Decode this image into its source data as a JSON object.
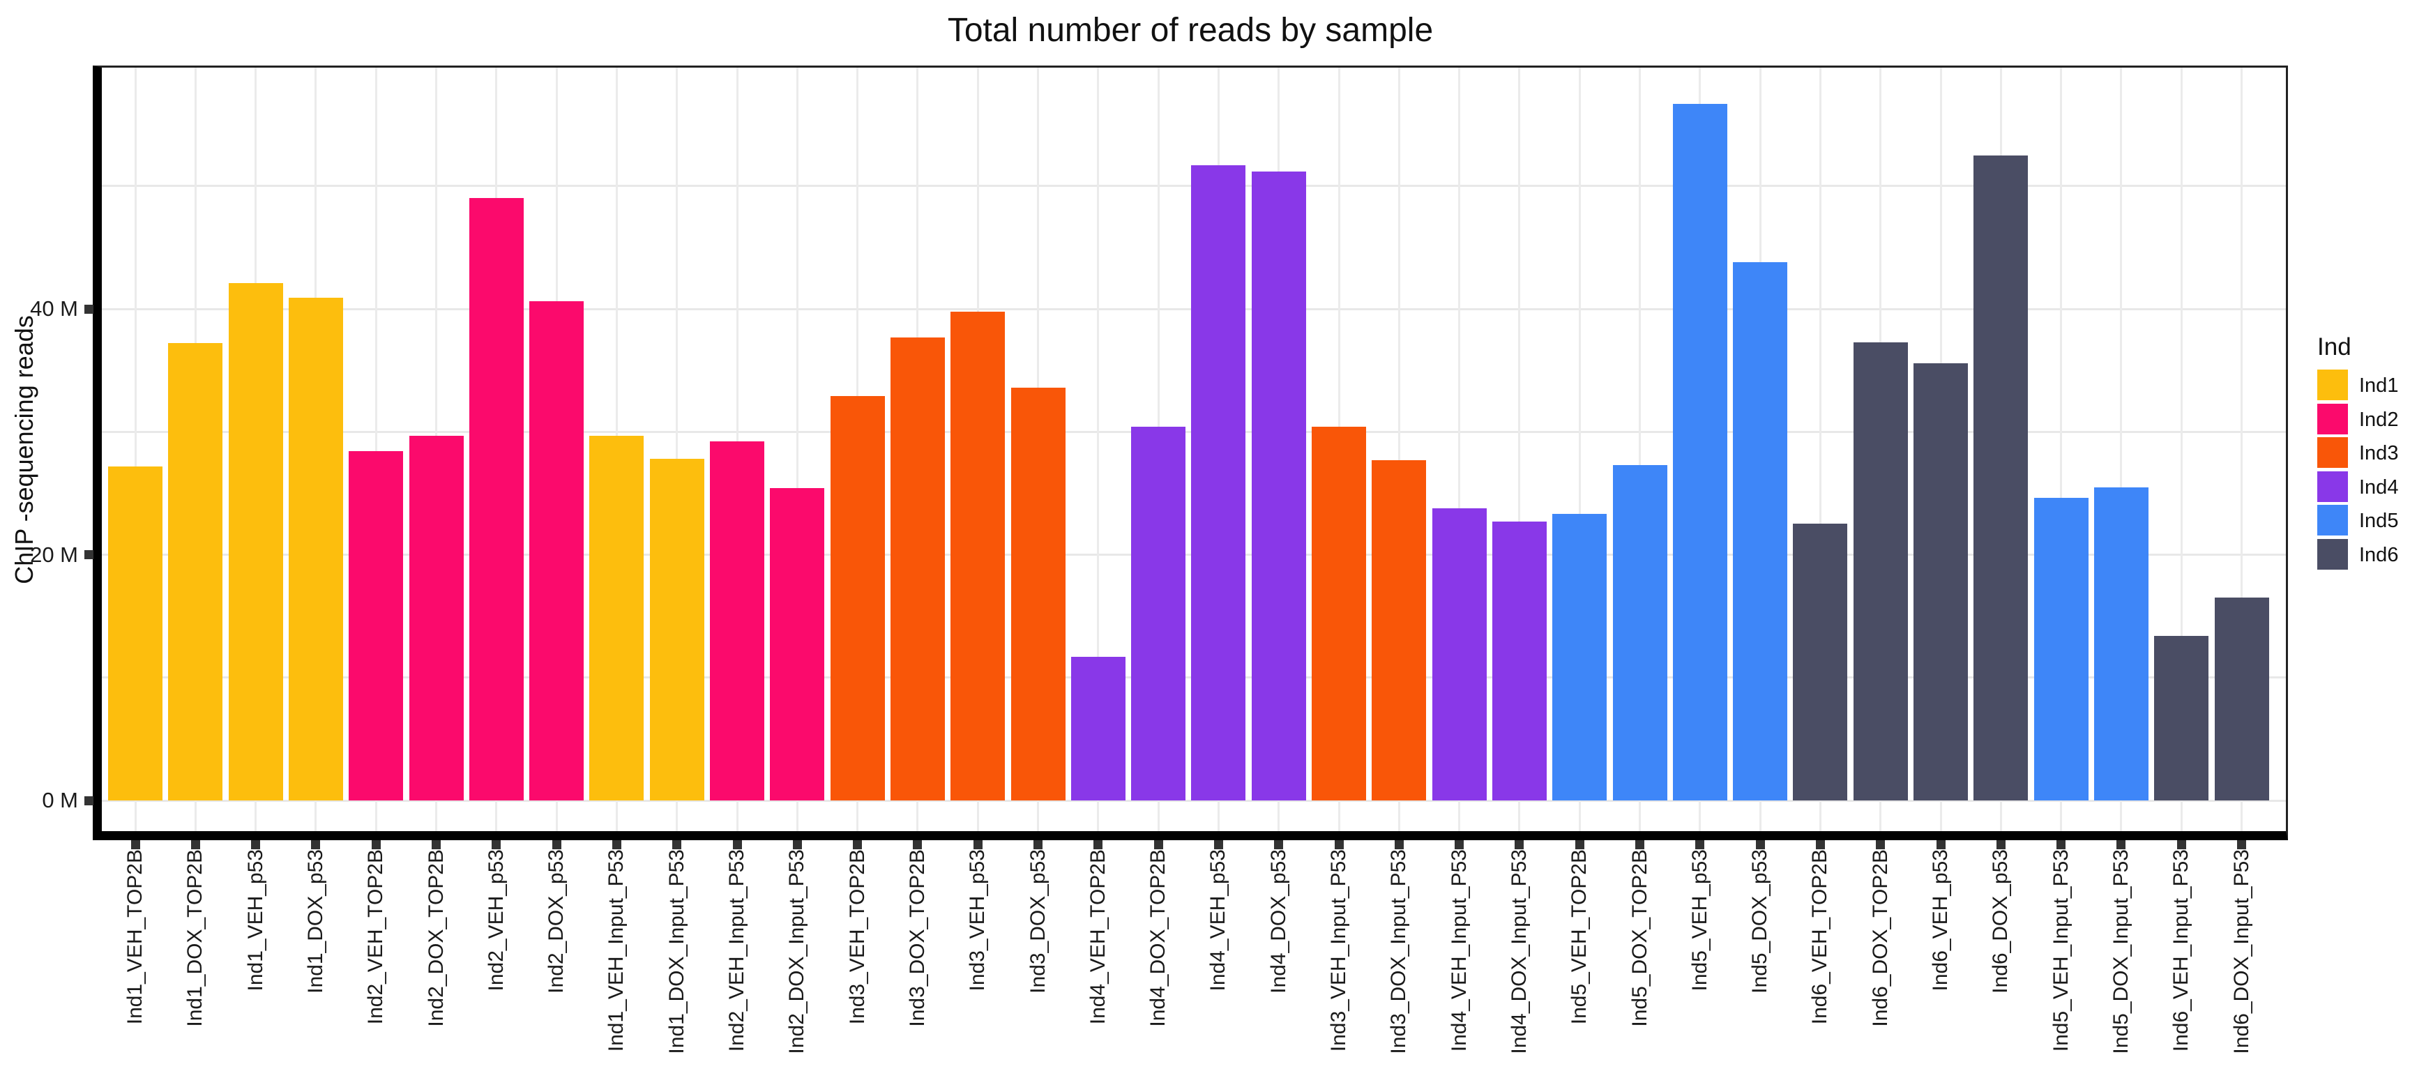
{
  "title": "Total number of reads by sample",
  "y_axis": {
    "label": "ChIP -sequencing reads",
    "tick_values": [
      0,
      20,
      40
    ],
    "tick_labels": [
      "0 M",
      "20 M",
      "40 M"
    ],
    "gridline_values": [
      0,
      10,
      20,
      30,
      40,
      50
    ]
  },
  "legend": {
    "title": "Ind",
    "entries": [
      {
        "label": "Ind1",
        "color": "#FDBE0D"
      },
      {
        "label": "Ind2",
        "color": "#FB0A6C"
      },
      {
        "label": "Ind3",
        "color": "#F95608"
      },
      {
        "label": "Ind4",
        "color": "#8938E8"
      },
      {
        "label": "Ind5",
        "color": "#3E86F8"
      },
      {
        "label": "Ind6",
        "color": "#4A4D64"
      }
    ]
  },
  "chart_data": {
    "type": "bar",
    "title": "Total number of reads by sample",
    "xlabel": "",
    "ylabel": "ChIP -sequencing reads",
    "y_unit": "millions of reads",
    "ylim": [
      0,
      59.6
    ],
    "grid": "on",
    "legend_position": "right",
    "categories": [
      "Ind1_VEH_TOP2B",
      "Ind1_DOX_TOP2B",
      "Ind1_VEH_p53",
      "Ind1_DOX_p53",
      "Ind2_VEH_TOP2B",
      "Ind2_DOX_TOP2B",
      "Ind2_VEH_p53",
      "Ind2_DOX_p53",
      "Ind1_VEH_Input_P53",
      "Ind1_DOX_Input_P53",
      "Ind2_VEH_Input_P53",
      "Ind2_DOX_Input_P53",
      "Ind3_VEH_TOP2B",
      "Ind3_DOX_TOP2B",
      "Ind3_VEH_p53",
      "Ind3_DOX_p53",
      "Ind4_VEH_TOP2B",
      "Ind4_DOX_TOP2B",
      "Ind4_VEH_p53",
      "Ind4_DOX_p53",
      "Ind3_VEH_Input_P53",
      "Ind3_DOX_Input_P53",
      "Ind4_VEH_Input_P53",
      "Ind4_DOX_Input_P53",
      "Ind5_VEH_TOP2B",
      "Ind5_DOX_TOP2B",
      "Ind5_VEH_p53",
      "Ind5_DOX_p53",
      "Ind6_VEH_TOP2B",
      "Ind6_DOX_TOP2B",
      "Ind6_VEH_p53",
      "Ind6_DOX_p53",
      "Ind5_VEH_Input_P53",
      "Ind5_DOX_Input_P53",
      "Ind6_VEH_Input_P53",
      "Ind6_DOX_Input_P53"
    ],
    "values": [
      27.2,
      37.2,
      42.1,
      40.9,
      28.4,
      29.7,
      49.0,
      40.6,
      29.7,
      27.8,
      29.2,
      25.4,
      32.9,
      37.7,
      39.8,
      33.6,
      11.7,
      30.4,
      51.7,
      51.2,
      30.4,
      27.7,
      23.8,
      22.7,
      23.3,
      27.3,
      56.7,
      43.8,
      22.5,
      37.3,
      35.6,
      52.5,
      24.6,
      25.5,
      13.4,
      16.5
    ],
    "bar_groups": [
      "Ind1",
      "Ind1",
      "Ind1",
      "Ind1",
      "Ind2",
      "Ind2",
      "Ind2",
      "Ind2",
      "Ind1",
      "Ind1",
      "Ind2",
      "Ind2",
      "Ind3",
      "Ind3",
      "Ind3",
      "Ind3",
      "Ind4",
      "Ind4",
      "Ind4",
      "Ind4",
      "Ind3",
      "Ind3",
      "Ind4",
      "Ind4",
      "Ind5",
      "Ind5",
      "Ind5",
      "Ind5",
      "Ind6",
      "Ind6",
      "Ind6",
      "Ind6",
      "Ind5",
      "Ind5",
      "Ind6",
      "Ind6"
    ],
    "group_colors": {
      "Ind1": "#FDBE0D",
      "Ind2": "#FB0A6C",
      "Ind3": "#F95608",
      "Ind4": "#8938E8",
      "Ind5": "#3E86F8",
      "Ind6": "#4A4D64"
    }
  }
}
